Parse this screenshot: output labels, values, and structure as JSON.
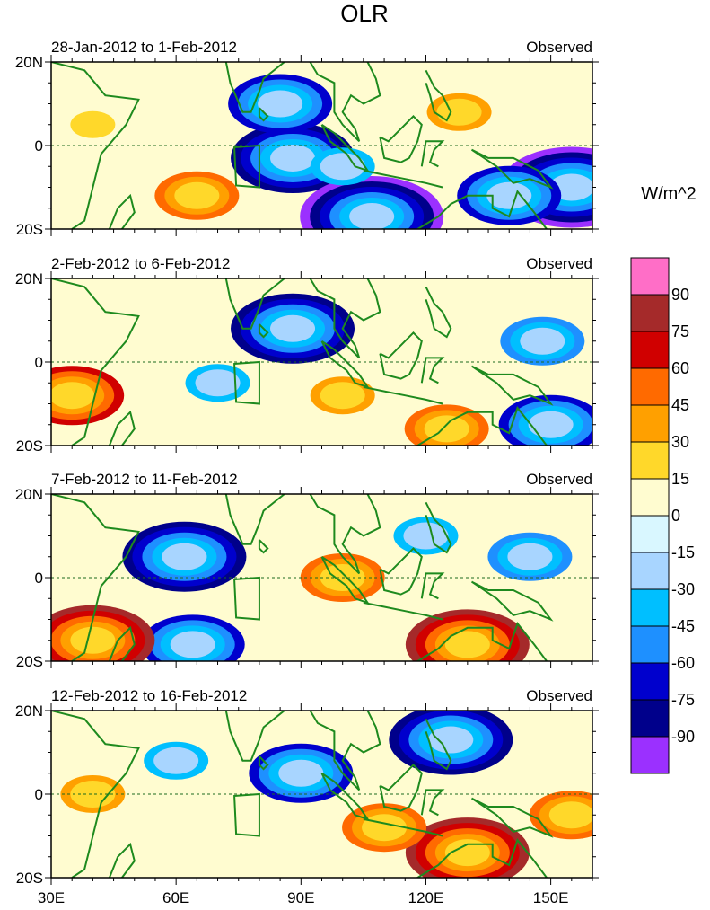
{
  "chart_data": {
    "type": "heatmap",
    "title": "OLR",
    "units": "W/m^2",
    "x_ticks": [
      "30E",
      "60E",
      "90E",
      "120E",
      "150E"
    ],
    "x_tick_values": [
      30,
      60,
      90,
      120,
      150
    ],
    "xlim": [
      30,
      160
    ],
    "y_ticks": [
      "20N",
      "0",
      "20S"
    ],
    "y_tick_values": [
      20,
      0,
      -20
    ],
    "ylim": [
      -20,
      20
    ],
    "colorbar": {
      "labels": [
        "90",
        "75",
        "60",
        "45",
        "30",
        "15",
        "0",
        "-15",
        "-30",
        "-45",
        "-60",
        "-75",
        "-90"
      ],
      "colors": [
        "#ff6ec7",
        "#a52a2a",
        "#d00000",
        "#ff6a00",
        "#ffa000",
        "#ffd82a",
        "#fffcd0",
        "#d9f7ff",
        "#a8d5ff",
        "#00bfff",
        "#1e90ff",
        "#0000cd",
        "#00008b",
        "#9b30ff"
      ]
    },
    "panels": [
      {
        "left_title": "28-Jan-2012 to 1-Feb-2012",
        "right_title": "Observed",
        "features": [
          {
            "lon": 88,
            "lat": -3,
            "value": -75
          },
          {
            "lon": 85,
            "lat": 10,
            "value": -60
          },
          {
            "lon": 107,
            "lat": -17,
            "value": -90
          },
          {
            "lon": 155,
            "lat": -10,
            "value": -90
          },
          {
            "lon": 140,
            "lat": -12,
            "value": -60
          },
          {
            "lon": 128,
            "lat": 8,
            "value": 30
          },
          {
            "lon": 65,
            "lat": -12,
            "value": 45
          },
          {
            "lon": 40,
            "lat": 5,
            "value": 15
          },
          {
            "lon": 100,
            "lat": -5,
            "value": -30
          }
        ]
      },
      {
        "left_title": "2-Feb-2012 to 6-Feb-2012",
        "right_title": "Observed",
        "features": [
          {
            "lon": 88,
            "lat": 8,
            "value": -75
          },
          {
            "lon": 148,
            "lat": 5,
            "value": -45
          },
          {
            "lon": 150,
            "lat": -15,
            "value": -60
          },
          {
            "lon": 35,
            "lat": -8,
            "value": 60
          },
          {
            "lon": 125,
            "lat": -16,
            "value": 45
          },
          {
            "lon": 100,
            "lat": -8,
            "value": 30
          },
          {
            "lon": 70,
            "lat": -5,
            "value": -30
          }
        ]
      },
      {
        "left_title": "7-Feb-2012 to 11-Feb-2012",
        "right_title": "Observed",
        "features": [
          {
            "lon": 62,
            "lat": 5,
            "value": -75
          },
          {
            "lon": 64,
            "lat": -16,
            "value": -60
          },
          {
            "lon": 130,
            "lat": -16,
            "value": 75
          },
          {
            "lon": 40,
            "lat": -15,
            "value": 75
          },
          {
            "lon": 100,
            "lat": 0,
            "value": 45
          },
          {
            "lon": 145,
            "lat": 5,
            "value": -45
          },
          {
            "lon": 120,
            "lat": 10,
            "value": -30
          }
        ]
      },
      {
        "left_title": "12-Feb-2012 to 16-Feb-2012",
        "right_title": "Observed",
        "features": [
          {
            "lon": 126,
            "lat": 13,
            "value": -75
          },
          {
            "lon": 130,
            "lat": -14,
            "value": 75
          },
          {
            "lon": 90,
            "lat": 5,
            "value": -60
          },
          {
            "lon": 110,
            "lat": -8,
            "value": 45
          },
          {
            "lon": 155,
            "lat": -5,
            "value": 45
          },
          {
            "lon": 60,
            "lat": 8,
            "value": -30
          },
          {
            "lon": 40,
            "lat": 0,
            "value": 30
          }
        ]
      }
    ]
  }
}
